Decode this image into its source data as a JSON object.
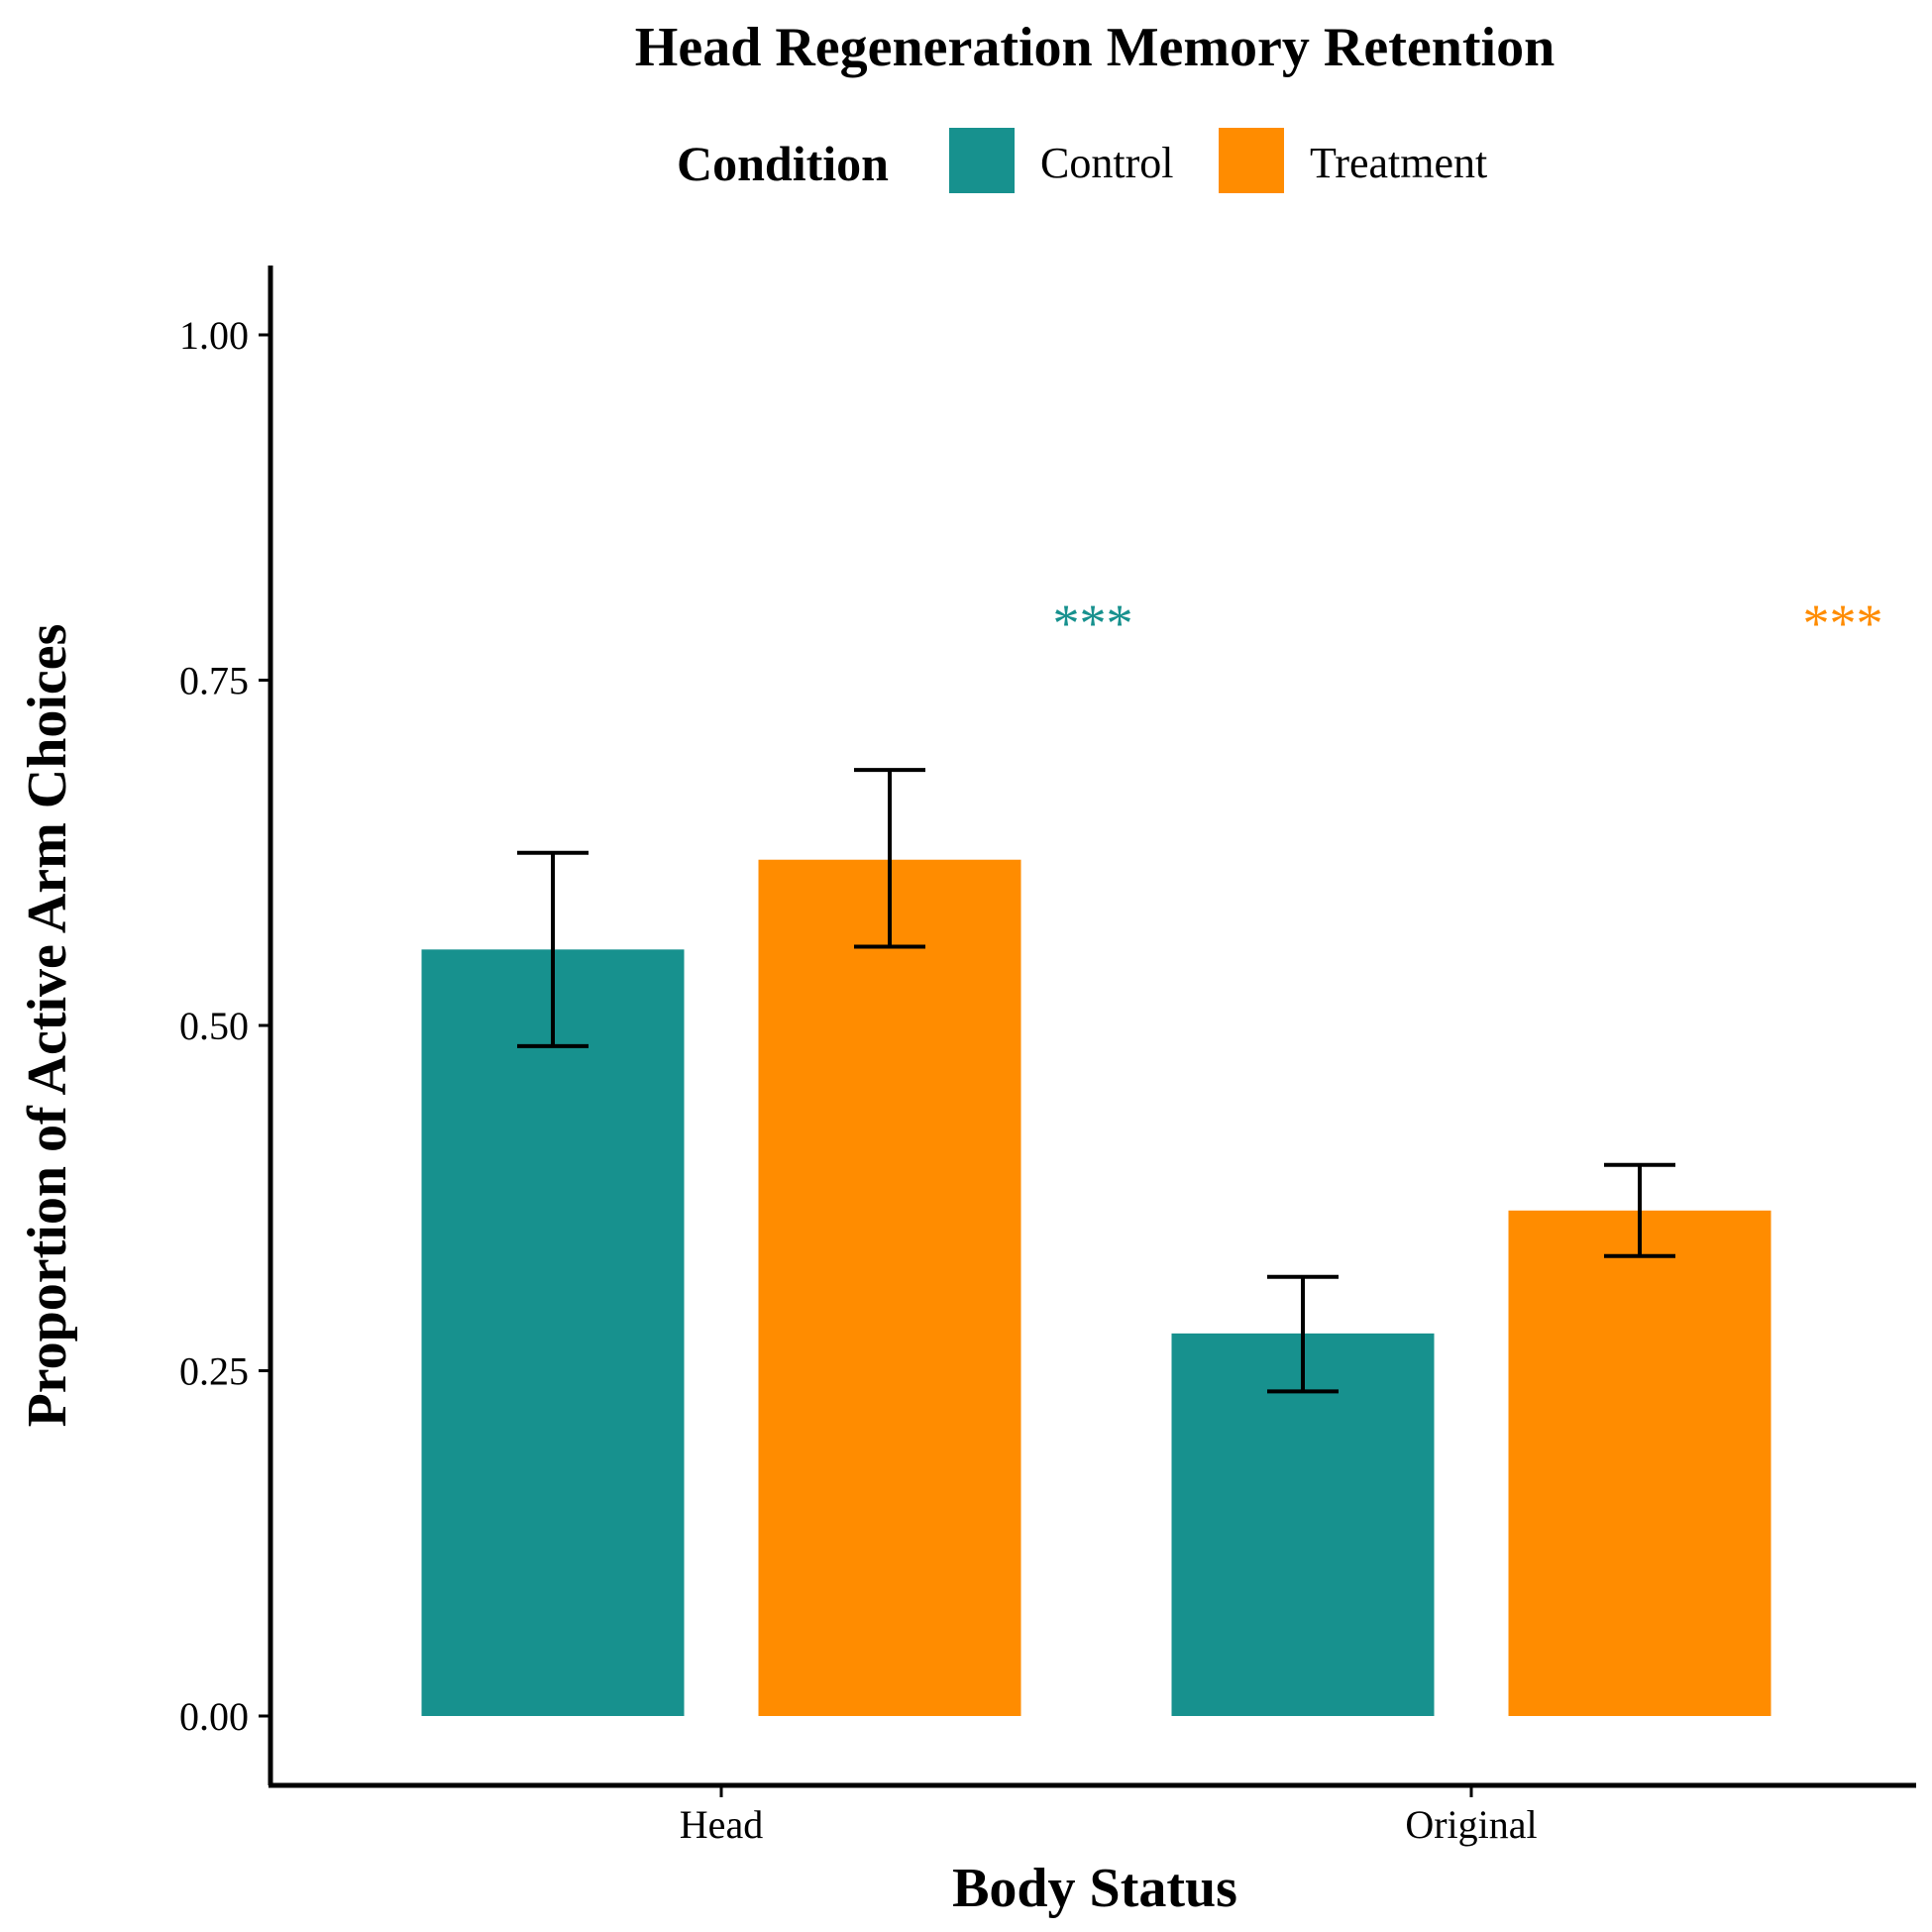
{
  "chart_data": {
    "type": "bar",
    "title": "Head Regeneration Memory Retention",
    "xlabel": "Body Status",
    "ylabel": "Proportion of Active Arm Choices",
    "categories": [
      "Head",
      "Original"
    ],
    "legend": {
      "title": "Condition",
      "position": "top"
    },
    "series": [
      {
        "name": "Control",
        "color": "#17918E",
        "values": [
          0.555,
          0.277
        ],
        "error_low": [
          0.485,
          0.235
        ],
        "error_high": [
          0.625,
          0.318
        ]
      },
      {
        "name": "Treatment",
        "color": "#FF8C00",
        "values": [
          0.62,
          0.366
        ],
        "error_low": [
          0.557,
          0.333
        ],
        "error_high": [
          0.685,
          0.399
        ]
      }
    ],
    "annotations": [
      {
        "text": "***",
        "category": "Head",
        "y": 0.8,
        "color": "#17918E"
      },
      {
        "text": "***",
        "category": "Original",
        "y": 0.8,
        "color": "#FF8C00"
      }
    ],
    "yticks": [
      0.0,
      0.25,
      0.5,
      0.75,
      1.0
    ],
    "ytick_labels": [
      "0.00",
      "0.25",
      "0.50",
      "0.75",
      "1.00"
    ],
    "ylim": [
      -0.05,
      1.05
    ],
    "grid": false
  }
}
